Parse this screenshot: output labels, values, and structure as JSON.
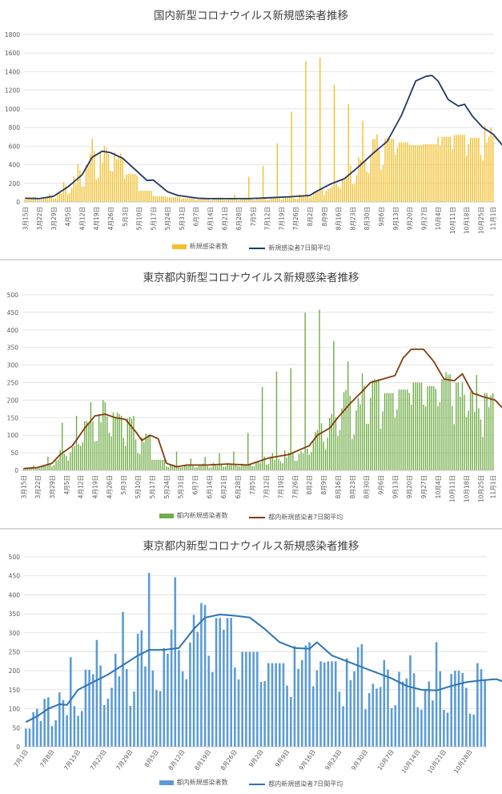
{
  "chart_data": [
    {
      "type": "bar",
      "title": "国内新型コロナウイルス新規感染者推移",
      "ylim": [
        0,
        1800
      ],
      "yticks": [
        0,
        200,
        400,
        600,
        800,
        1000,
        1200,
        1400,
        1600,
        1800
      ],
      "x_start": "3月15日",
      "x_end": "11月1日",
      "xtick_labels": [
        "3月15日",
        "3月22日",
        "3月29日",
        "4月5日",
        "4月12日",
        "4月19日",
        "4月26日",
        "5月3日",
        "5月10日",
        "5月17日",
        "5月24日",
        "5月31日",
        "6月7日",
        "6月14日",
        "6月21日",
        "6月28日",
        "7月5日",
        "7月12日",
        "7月19日",
        "7月26日",
        "8月2日",
        "8月9日",
        "8月16日",
        "8月23日",
        "8月30日",
        "9月6日",
        "9月13日",
        "9月20日",
        "9月27日",
        "10月4日",
        "10月11日",
        "10月18日",
        "10月25日",
        "11月1日"
      ],
      "series": [
        {
          "name": "新規感染者数",
          "kind": "bar",
          "color": "#f2bf2b",
          "weekly_peaks": [
            60,
            90,
            220,
            420,
            700,
            600,
            540,
            300,
            120,
            60,
            50,
            40,
            45,
            50,
            80,
            280,
            400,
            650,
            1000,
            1560,
            1600,
            1300,
            1080,
            900,
            750,
            680,
            640,
            610,
            620,
            700,
            720,
            690,
            820,
            850
          ]
        },
        {
          "name": "新規感染者7日間平均",
          "kind": "line",
          "color": "#203864",
          "points": [
            [
              0,
              40
            ],
            [
              7,
              35
            ],
            [
              14,
              60
            ],
            [
              21,
              160
            ],
            [
              28,
              290
            ],
            [
              33,
              480
            ],
            [
              38,
              545
            ],
            [
              42,
              530
            ],
            [
              48,
              470
            ],
            [
              55,
              330
            ],
            [
              60,
              230
            ],
            [
              63,
              235
            ],
            [
              70,
              110
            ],
            [
              75,
              70
            ],
            [
              80,
              55
            ],
            [
              85,
              40
            ],
            [
              90,
              35
            ],
            [
              100,
              35
            ],
            [
              110,
              35
            ],
            [
              120,
              45
            ],
            [
              130,
              55
            ],
            [
              140,
              70
            ],
            [
              143,
              110
            ],
            [
              150,
              190
            ],
            [
              157,
              250
            ],
            [
              164,
              380
            ],
            [
              171,
              520
            ],
            [
              178,
              650
            ],
            [
              185,
              930
            ],
            [
              192,
              1300
            ],
            [
              197,
              1350
            ],
            [
              200,
              1360
            ],
            [
              203,
              1300
            ],
            [
              208,
              1100
            ],
            [
              213,
              1030
            ],
            [
              216,
              1050
            ],
            [
              220,
              920
            ],
            [
              225,
              800
            ],
            [
              230,
              730
            ],
            [
              235,
              600
            ],
            [
              240,
              540
            ],
            [
              245,
              520
            ],
            [
              250,
              540
            ],
            [
              255,
              520
            ],
            [
              260,
              530
            ],
            [
              265,
              420
            ],
            [
              270,
              420
            ],
            [
              275,
              520
            ],
            [
              280,
              520
            ],
            [
              285,
              495
            ],
            [
              290,
              500
            ],
            [
              295,
              510
            ],
            [
              300,
              530
            ],
            [
              305,
              520
            ],
            [
              310,
              540
            ],
            [
              315,
              580
            ],
            [
              320,
              630
            ],
            [
              325,
              680
            ],
            [
              330,
              700
            ]
          ]
        }
      ]
    },
    {
      "type": "bar",
      "title": "東京都内新型コロナウイルス新規感染者推移",
      "ylim": [
        0,
        500
      ],
      "yticks": [
        0,
        50,
        100,
        150,
        200,
        250,
        300,
        350,
        400,
        450,
        500
      ],
      "x_start": "3月15日",
      "x_end": "11月1日",
      "xtick_labels": [
        "3月15日",
        "3月22日",
        "3月29日",
        "4月5日",
        "4月12日",
        "4月19日",
        "4月26日",
        "5月3日",
        "5月10日",
        "5月17日",
        "5月24日",
        "5月31日",
        "6月7日",
        "6月14日",
        "6月21日",
        "6月28日",
        "7月5日",
        "7月12日",
        "7月19日",
        "7月26日",
        "8月2日",
        "8月9日",
        "8月16日",
        "8月23日",
        "8月30日",
        "9月6日",
        "9月13日",
        "9月20日",
        "9月27日",
        "10月4日",
        "10月11日",
        "10月18日",
        "10月25日",
        "11月1日"
      ],
      "series": [
        {
          "name": "都内新規感染者数",
          "kind": "bar",
          "color": "#70ad47",
          "weekly_peaks": [
            15,
            40,
            140,
            160,
            200,
            200,
            165,
            160,
            105,
            30,
            55,
            35,
            40,
            50,
            55,
            110,
            245,
            290,
            300,
            463,
            472,
            380,
            320,
            285,
            260,
            220,
            230,
            250,
            240,
            280,
            250,
            280,
            220,
            215
          ]
        },
        {
          "name": "都内新規感染者7日間平均",
          "kind": "line",
          "color": "#843c0c",
          "points": [
            [
              0,
              5
            ],
            [
              7,
              8
            ],
            [
              14,
              20
            ],
            [
              18,
              45
            ],
            [
              24,
              70
            ],
            [
              30,
              120
            ],
            [
              35,
              155
            ],
            [
              40,
              160
            ],
            [
              45,
              150
            ],
            [
              50,
              145
            ],
            [
              55,
              110
            ],
            [
              58,
              85
            ],
            [
              62,
              100
            ],
            [
              66,
              90
            ],
            [
              70,
              20
            ],
            [
              75,
              10
            ],
            [
              80,
              15
            ],
            [
              90,
              15
            ],
            [
              100,
              18
            ],
            [
              110,
              15
            ],
            [
              120,
              35
            ],
            [
              130,
              45
            ],
            [
              136,
              60
            ],
            [
              140,
              70
            ],
            [
              144,
              100
            ],
            [
              150,
              120
            ],
            [
              154,
              150
            ],
            [
              160,
              190
            ],
            [
              166,
              225
            ],
            [
              170,
              250
            ],
            [
              176,
              260
            ],
            [
              182,
              270
            ],
            [
              186,
              320
            ],
            [
              190,
              345
            ],
            [
              196,
              345
            ],
            [
              201,
              310
            ],
            [
              206,
              260
            ],
            [
              211,
              255
            ],
            [
              215,
              275
            ],
            [
              220,
              220
            ],
            [
              225,
              210
            ],
            [
              231,
              200
            ],
            [
              236,
              170
            ],
            [
              241,
              150
            ],
            [
              246,
              145
            ],
            [
              251,
              175
            ],
            [
              256,
              180
            ],
            [
              261,
              170
            ],
            [
              266,
              175
            ],
            [
              271,
              150
            ],
            [
              276,
              150
            ],
            [
              281,
              190
            ],
            [
              286,
              175
            ],
            [
              291,
              160
            ],
            [
              296,
              175
            ],
            [
              301,
              180
            ],
            [
              306,
              175
            ],
            [
              311,
              165
            ],
            [
              316,
              155
            ],
            [
              321,
              160
            ],
            [
              326,
              170
            ],
            [
              330,
              168
            ]
          ]
        }
      ]
    },
    {
      "type": "bar",
      "title": "東京都内新型コロナウイルス新規感染者推移",
      "ylim": [
        0,
        500
      ],
      "yticks": [
        0,
        50,
        100,
        150,
        200,
        250,
        300,
        350,
        400,
        450,
        500
      ],
      "x_start": "7月1日",
      "x_end": "11月1日",
      "xtick_labels": [
        "7月1日",
        "7月8日",
        "7月15日",
        "7月22日",
        "7月29日",
        "8月5日",
        "8月12日",
        "8月19日",
        "8月26日",
        "9月2日",
        "9月9日",
        "9月16日",
        "9月23日",
        "9月30日",
        "10月7日",
        "10月14日",
        "10月21日",
        "10月28日"
      ],
      "series": [
        {
          "name": "都内新規感染者数",
          "kind": "bar",
          "color": "#5b9bd5",
          "weekly_peaks": [
            130,
            243,
            290,
            366,
            472,
            460,
            390,
            339,
            250,
            220,
            275,
            225,
            270,
            235,
            248,
            284,
            200,
            220
          ]
        },
        {
          "name": "都内新規感染者7日間平均",
          "kind": "line",
          "color": "#2e75b6",
          "points": [
            [
              0,
              65
            ],
            [
              3,
              80
            ],
            [
              6,
              100
            ],
            [
              9,
              112
            ],
            [
              11,
              110
            ],
            [
              14,
              150
            ],
            [
              18,
              170
            ],
            [
              22,
              190
            ],
            [
              26,
              215
            ],
            [
              30,
              240
            ],
            [
              33,
              255
            ],
            [
              37,
              255
            ],
            [
              41,
              260
            ],
            [
              45,
              310
            ],
            [
              48,
              340
            ],
            [
              52,
              348
            ],
            [
              56,
              345
            ],
            [
              60,
              340
            ],
            [
              64,
              310
            ],
            [
              68,
              275
            ],
            [
              72,
              260
            ],
            [
              76,
              258
            ],
            [
              78,
              275
            ],
            [
              82,
              240
            ],
            [
              86,
              225
            ],
            [
              90,
              210
            ],
            [
              94,
              195
            ],
            [
              98,
              180
            ],
            [
              102,
              160
            ],
            [
              106,
              150
            ],
            [
              110,
              148
            ],
            [
              114,
              160
            ],
            [
              118,
              170
            ],
            [
              122,
              175
            ],
            [
              126,
              178
            ],
            [
              130,
              165
            ],
            [
              134,
              170
            ],
            [
              138,
              158
            ],
            [
              142,
              145
            ],
            [
              146,
              150
            ],
            [
              150,
              148
            ],
            [
              154,
              170
            ],
            [
              158,
              188
            ],
            [
              162,
              182
            ],
            [
              166,
              170
            ],
            [
              170,
              160
            ],
            [
              174,
              165
            ],
            [
              178,
              178
            ],
            [
              182,
              178
            ],
            [
              186,
              185
            ],
            [
              190,
              182
            ],
            [
              194,
              178
            ],
            [
              198,
              165
            ],
            [
              202,
              158
            ],
            [
              206,
              160
            ],
            [
              210,
              165
            ],
            [
              214,
              170
            ],
            [
              218,
              168
            ]
          ]
        }
      ]
    }
  ]
}
